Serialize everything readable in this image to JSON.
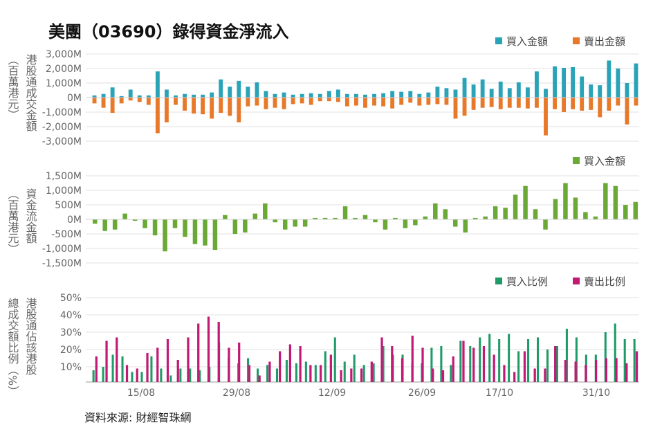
{
  "title": "美團（03690）錄得資金淨流入",
  "source": "資料來源: 財經智珠網",
  "colors": {
    "buy": "#2aa3b8",
    "sell": "#e8792a",
    "net": "#6aa936",
    "buy_ratio": "#1f9a68",
    "sell_ratio": "#c11a74"
  },
  "chart_data": [
    {
      "type": "bar",
      "ylabel": "港股通成交金額（百萬港元）",
      "yticks": [
        "3,000M",
        "2,000M",
        "1,000M",
        "0M",
        "-1,000M",
        "-2,000M",
        "-3,000M"
      ],
      "ylim": [
        -3000,
        3000
      ],
      "legend": [
        "買入金額",
        "賣出金額"
      ],
      "legend_position": "top-right",
      "series": [
        {
          "name": "買入金額",
          "values": [
            150,
            250,
            700,
            100,
            550,
            150,
            150,
            1800,
            550,
            150,
            250,
            200,
            200,
            350,
            1250,
            750,
            1150,
            750,
            1050,
            450,
            250,
            350,
            200,
            250,
            300,
            250,
            450,
            550,
            250,
            250,
            200,
            250,
            300,
            450,
            400,
            450,
            250,
            350,
            750,
            650,
            550,
            1350,
            900,
            1250,
            600,
            1100,
            650,
            1050,
            700,
            1800,
            600,
            2150,
            2050,
            2100,
            1450,
            900,
            850,
            2550,
            2000,
            1000,
            2350
          ]
        },
        {
          "name": "賣出金額",
          "values": [
            -400,
            -700,
            -1050,
            -400,
            -200,
            -300,
            -500,
            -2450,
            -1700,
            -500,
            -900,
            -1100,
            -1150,
            -1450,
            -1050,
            -1250,
            -1700,
            -600,
            -550,
            -800,
            -700,
            -800,
            -450,
            -400,
            -500,
            -250,
            -250,
            -300,
            -600,
            -550,
            -700,
            -550,
            -600,
            -750,
            -500,
            -350,
            -550,
            -500,
            -450,
            -500,
            -1450,
            -1250,
            -850,
            -700,
            -650,
            -800,
            -700,
            -700,
            -750,
            -700,
            -2600,
            -800,
            -1000,
            -800,
            -900,
            -850,
            -1350,
            -900,
            -550,
            -1850,
            -550
          ]
        }
      ]
    },
    {
      "type": "bar",
      "ylabel": "資金流金額（百萬港元）",
      "yticks": [
        "1,500M",
        "1,000M",
        "500M",
        "0M",
        "-500M",
        "-1,000M",
        "-1,500M"
      ],
      "ylim": [
        -1500,
        1500
      ],
      "legend": [
        "買入金額"
      ],
      "legend_position": "top-right",
      "series": [
        {
          "name": "買入金額",
          "values": [
            -150,
            -400,
            -350,
            200,
            -50,
            -300,
            -550,
            -1100,
            -300,
            -600,
            -850,
            -900,
            -1050,
            150,
            -500,
            -450,
            200,
            550,
            -100,
            -350,
            -250,
            -250,
            50,
            50,
            50,
            450,
            50,
            150,
            -100,
            -350,
            50,
            -300,
            -200,
            100,
            550,
            350,
            -250,
            -450,
            50,
            100,
            450,
            400,
            850,
            1150,
            350,
            -350,
            700,
            1250,
            750,
            250,
            100,
            1250,
            1150,
            500,
            600
          ]
        }
      ]
    },
    {
      "type": "bar",
      "ylabel": "港股通佔該港股總成交額比例（%）",
      "yticks": [
        "50%",
        "40%",
        "30%",
        "20%",
        "10%"
      ],
      "ylim": [
        0,
        50
      ],
      "x_tick_labels": [
        "15/08",
        "29/08",
        "12/09",
        "26/09",
        "17/10",
        "31/10"
      ],
      "legend": [
        "買入比例",
        "賣出比例"
      ],
      "legend_position": "top-right",
      "series": [
        {
          "name": "買入比例",
          "values": [
            8,
            10,
            17,
            16,
            7,
            7,
            16,
            9,
            5,
            9,
            9,
            8,
            10,
            24,
            15,
            12,
            15,
            9,
            11,
            9,
            14,
            12,
            13,
            11,
            19,
            27,
            13,
            17,
            11,
            12,
            22,
            17,
            17,
            12,
            12,
            21,
            22,
            11,
            25,
            22,
            27,
            29,
            26,
            29,
            19,
            26,
            27,
            20,
            22,
            32,
            27,
            17,
            17,
            30,
            35,
            26,
            26
          ]
        },
        {
          "name": "賣出比例",
          "values": [
            16,
            25,
            27,
            11,
            9,
            18,
            21,
            26,
            14,
            27,
            35,
            39,
            36,
            21,
            24,
            11,
            5,
            13,
            19,
            23,
            22,
            11,
            11,
            17,
            8,
            9,
            9,
            13,
            27,
            22,
            15,
            28,
            21,
            9,
            8,
            16,
            25,
            21,
            22,
            17,
            11,
            7,
            19,
            9,
            9,
            22,
            14,
            13,
            11,
            14,
            15,
            15,
            12,
            19
          ]
        }
      ]
    }
  ]
}
